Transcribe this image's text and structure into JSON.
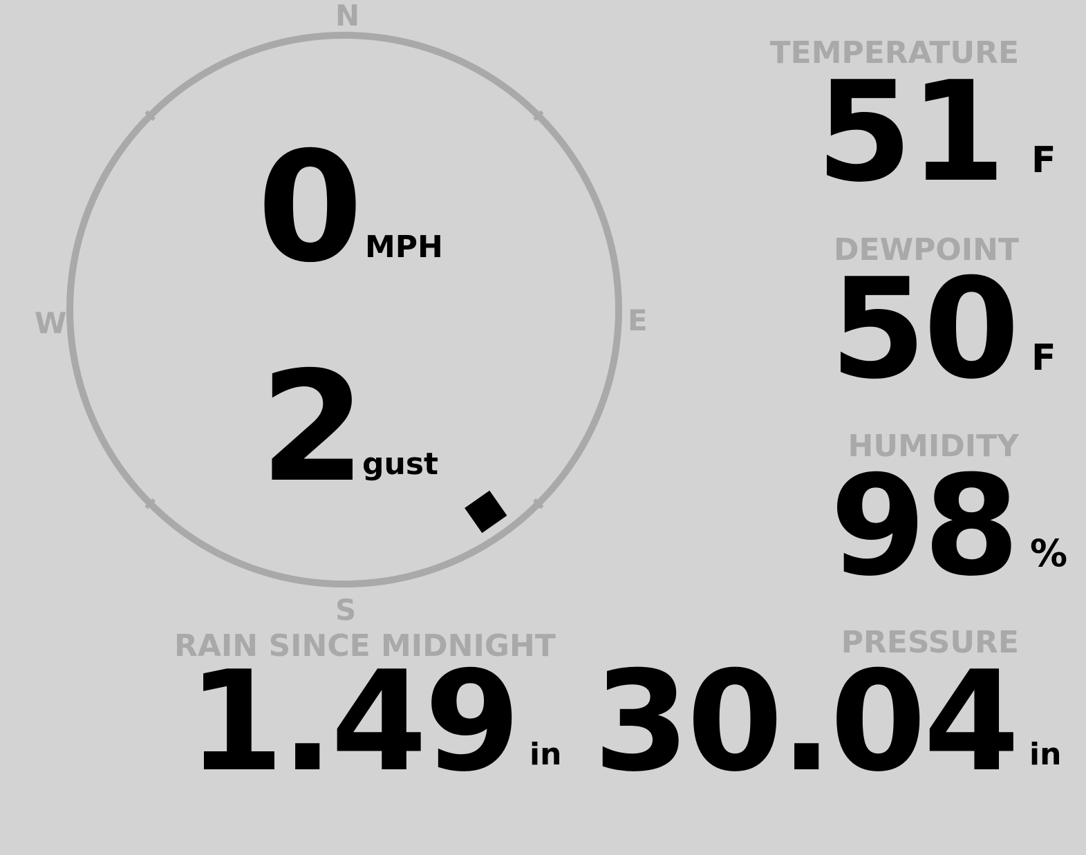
{
  "wind": {
    "speed": "0",
    "speed_unit": "MPH",
    "gust": "2",
    "gust_unit": "gust",
    "direction_deg": 145,
    "compass": {
      "n": "N",
      "e": "E",
      "s": "S",
      "w": "W"
    }
  },
  "temperature": {
    "label": "TEMPERATURE",
    "value": "51",
    "unit": "F"
  },
  "dewpoint": {
    "label": "DEWPOINT",
    "value": "50",
    "unit": "F"
  },
  "humidity": {
    "label": "HUMIDITY",
    "value": "98",
    "unit": "%"
  },
  "rain": {
    "label": "RAIN SINCE MIDNIGHT",
    "value": "1.49",
    "unit": "in"
  },
  "pressure": {
    "label": "PRESSURE",
    "value": "30.04",
    "unit": "in"
  },
  "colors": {
    "background": "#d3d3d3",
    "muted": "#a9a9a9",
    "text": "#000000"
  }
}
